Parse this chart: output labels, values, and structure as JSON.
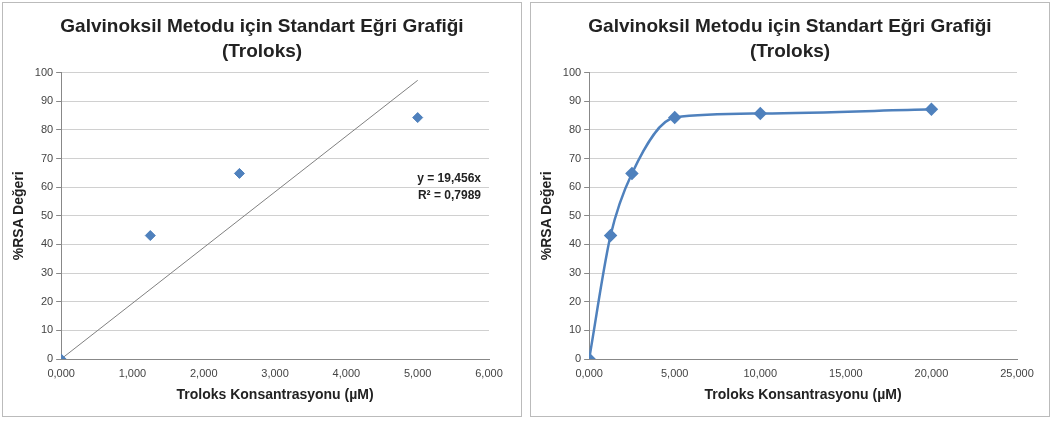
{
  "chart_data": [
    {
      "type": "scatter",
      "title": "Galvinoksil Metodu için Standart Eğri Grafiği (Troloks)",
      "xlabel": "Troloks Konsantrasyonu (µM)",
      "ylabel": "%RSA Değeri",
      "series": [
        {
          "type": "scatter",
          "color": "#4f81bd",
          "x": [
            0,
            1.25,
            2.5,
            5
          ],
          "values": [
            0,
            43.1,
            64.8,
            84.3
          ],
          "marker": "diamond"
        },
        {
          "type": "line",
          "color": "#808080",
          "x": [
            0,
            5
          ],
          "values": [
            0,
            97.3
          ],
          "marker": "none"
        }
      ],
      "xlim": [
        0,
        6
      ],
      "xticks": [
        {
          "value": 0,
          "label": "0,000"
        },
        {
          "value": 1,
          "label": "1,000"
        },
        {
          "value": 2,
          "label": "2,000"
        },
        {
          "value": 3,
          "label": "3,000"
        },
        {
          "value": 4,
          "label": "4,000"
        },
        {
          "value": 5,
          "label": "5,000"
        },
        {
          "value": 6,
          "label": "6,000"
        }
      ],
      "ylim": [
        0,
        100
      ],
      "yticks": [
        0,
        10,
        20,
        30,
        40,
        50,
        60,
        70,
        80,
        90,
        100
      ],
      "annotations": [
        "y = 19,456x",
        "R² = 0,7989"
      ],
      "grid": "y",
      "legend": false
    },
    {
      "type": "line",
      "title": "Galvinoksil Metodu için Standart Eğri Grafiği (Troloks)",
      "xlabel": "Troloks Konsantrasyonu (µM)",
      "ylabel": "%RSA Değeri",
      "series": [
        {
          "color": "#4f81bd",
          "x": [
            0,
            1.25,
            2.5,
            5,
            10,
            20
          ],
          "values": [
            0,
            43.1,
            64.8,
            84.3,
            85.7,
            87.2
          ]
        }
      ],
      "xlim": [
        0,
        25
      ],
      "xticks": [
        {
          "value": 0,
          "label": "0,000"
        },
        {
          "value": 5,
          "label": "5,000"
        },
        {
          "value": 10,
          "label": "10,000"
        },
        {
          "value": 15,
          "label": "15,000"
        },
        {
          "value": 20,
          "label": "20,000"
        },
        {
          "value": 25,
          "label": "25,000"
        }
      ],
      "ylim": [
        0,
        100
      ],
      "yticks": [
        0,
        10,
        20,
        30,
        40,
        50,
        60,
        70,
        80,
        90,
        100
      ],
      "marker": "diamond",
      "grid": "y",
      "legend": false
    }
  ]
}
